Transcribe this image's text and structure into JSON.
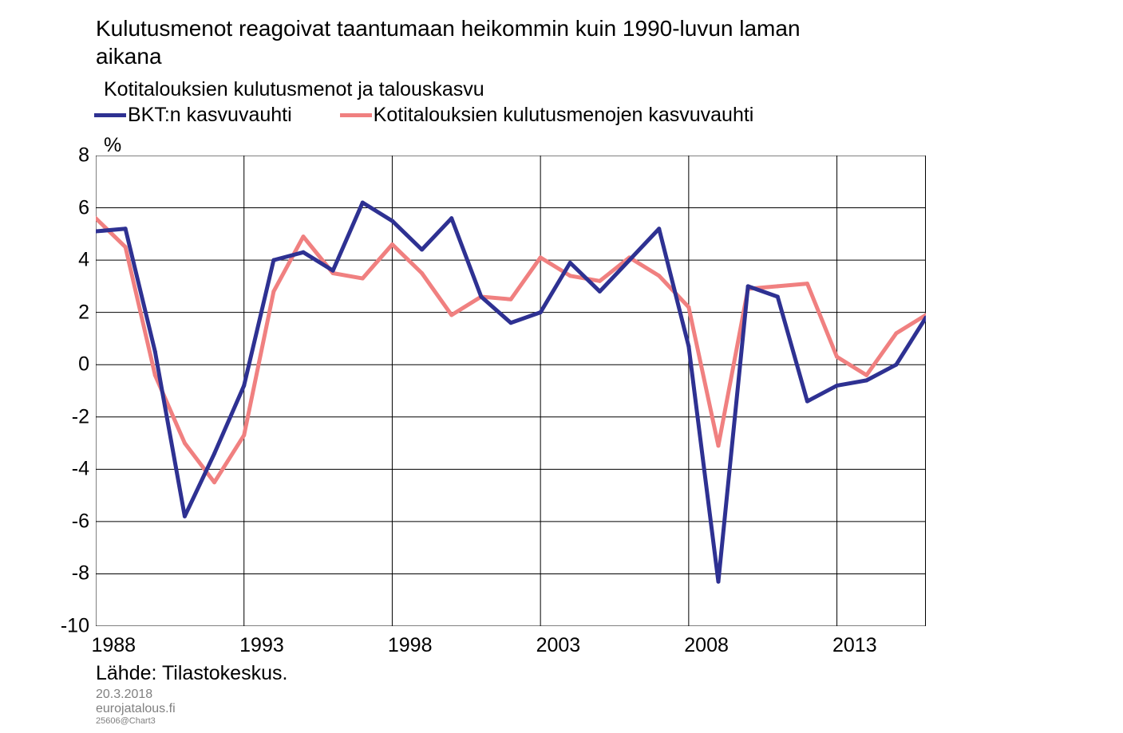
{
  "title": "Kulutusmenot reagoivat taantumaan heikommin kuin 1990-luvun laman aikana",
  "subtitle": "Kotitalouksien kulutusmenot ja talouskasvu",
  "y_unit": "%",
  "legend": {
    "series1": {
      "label": "BKT:n kasvuvauhti",
      "color": "#2e3192"
    },
    "series2": {
      "label": "Kotitalouksien kulutusmenojen kasvuvauhti",
      "color": "#f08080"
    }
  },
  "source": "Lähde: Tilastokeskus.",
  "footer": {
    "date": "20.3.2018",
    "site": "eurojatalous.fi",
    "id": "25606@Chart3"
  },
  "chart": {
    "type": "line",
    "background_color": "#ffffff",
    "grid_color": "#000000",
    "grid_stroke": 1,
    "border_stroke": 1,
    "line_stroke": 5,
    "marker_radius": 2.5,
    "xlim": [
      1988,
      2016
    ],
    "ylim": [
      -10,
      8
    ],
    "ytick_step": 2,
    "xticks": [
      1988,
      1993,
      1998,
      2003,
      2008,
      2013
    ],
    "yticks": [
      -10,
      -8,
      -6,
      -4,
      -2,
      0,
      2,
      4,
      6,
      8
    ],
    "years": [
      1988,
      1989,
      1990,
      1991,
      1992,
      1993,
      1994,
      1995,
      1996,
      1997,
      1998,
      1999,
      2000,
      2001,
      2002,
      2003,
      2004,
      2005,
      2006,
      2007,
      2008,
      2009,
      2010,
      2011,
      2012,
      2013,
      2014,
      2015,
      2016
    ],
    "series1_values": [
      5.1,
      5.2,
      0.5,
      -5.8,
      -3.4,
      -0.8,
      4.0,
      4.3,
      3.6,
      6.2,
      5.5,
      4.4,
      5.6,
      2.6,
      1.6,
      2.0,
      3.9,
      2.8,
      4.0,
      5.2,
      0.7,
      -8.3,
      3.0,
      2.6,
      -1.4,
      -0.8,
      -0.6,
      0.0,
      1.8
    ],
    "series2_values": [
      5.6,
      4.5,
      -0.4,
      -3.0,
      -4.5,
      -2.7,
      2.8,
      4.9,
      3.5,
      3.3,
      4.6,
      3.5,
      1.9,
      2.6,
      2.5,
      4.1,
      3.4,
      3.2,
      4.1,
      3.4,
      2.2,
      -3.1,
      2.9,
      3.0,
      3.1,
      0.3,
      -0.4,
      1.2,
      1.9
    ]
  }
}
